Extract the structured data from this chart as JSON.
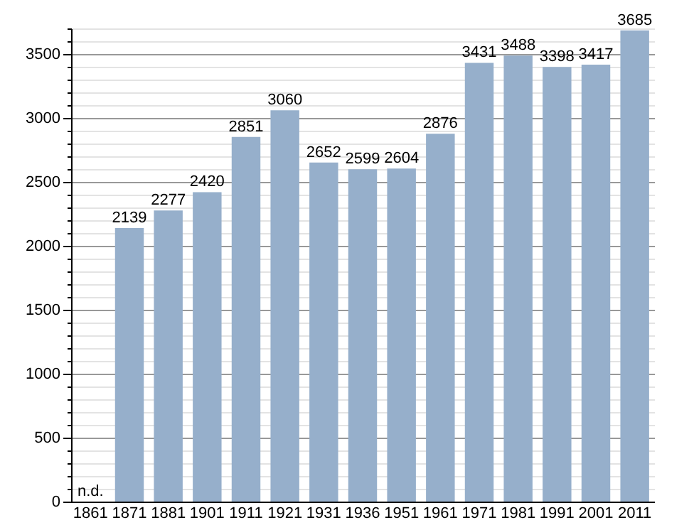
{
  "chart_data": {
    "type": "bar",
    "categories": [
      "1861",
      "1871",
      "1881",
      "1901",
      "1911",
      "1921",
      "1931",
      "1936",
      "1951",
      "1961",
      "1971",
      "1981",
      "1991",
      "2001",
      "2011"
    ],
    "values": [
      null,
      2139,
      2277,
      2420,
      2851,
      3060,
      2652,
      2599,
      2604,
      2876,
      3431,
      3488,
      3398,
      3417,
      3685
    ],
    "value_labels": [
      "n.d.",
      "2139",
      "2277",
      "2420",
      "2851",
      "3060",
      "2652",
      "2599",
      "2604",
      "2876",
      "3431",
      "3488",
      "3398",
      "3417",
      "3685"
    ],
    "color": "#96afcb",
    "ylim": [
      0,
      3700
    ],
    "yticks": [
      0,
      {
        "value": 100,
        "label": null
      },
      {
        "value": 200,
        "label": null
      },
      {
        "value": 300,
        "label": null
      },
      {
        "value": 400,
        "label": null
      },
      500,
      {
        "value": 600,
        "label": null
      },
      {
        "value": 700,
        "label": null
      },
      {
        "value": 800,
        "label": null
      },
      {
        "value": 900,
        "label": null
      },
      1000,
      {
        "value": 1100,
        "label": null
      },
      {
        "value": 1200,
        "label": null
      },
      {
        "value": 1300,
        "label": null
      },
      {
        "value": 1400,
        "label": null
      },
      1500,
      {
        "value": 1600,
        "label": null
      },
      {
        "value": 1700,
        "label": null
      },
      {
        "value": 1800,
        "label": null
      },
      {
        "value": 1900,
        "label": null
      },
      2000,
      {
        "value": 2100,
        "label": null
      },
      {
        "value": 2200,
        "label": null
      },
      {
        "value": 2300,
        "label": null
      },
      {
        "value": 2400,
        "label": null
      },
      2500,
      {
        "value": 2600,
        "label": null
      },
      {
        "value": 2700,
        "label": null
      },
      {
        "value": 2800,
        "label": null
      },
      {
        "value": 2900,
        "label": null
      },
      3000,
      {
        "value": 3100,
        "label": null
      },
      {
        "value": 3200,
        "label": null
      },
      {
        "value": 3300,
        "label": null
      },
      {
        "value": 3400,
        "label": null
      },
      3500,
      {
        "value": 3600,
        "label": null
      },
      {
        "value": 3700,
        "label": null
      }
    ],
    "grid": true
  }
}
